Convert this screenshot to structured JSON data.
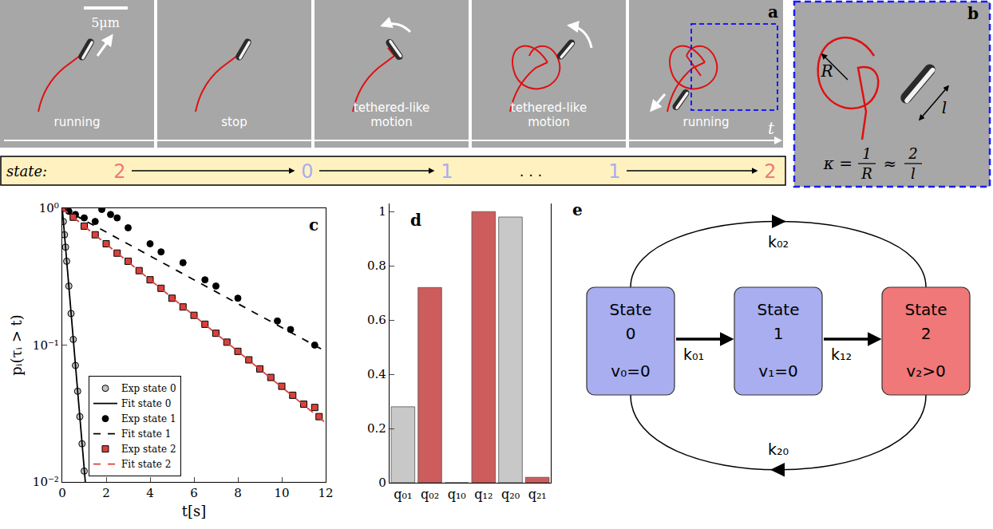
{
  "panel_a": {
    "label": "a",
    "scale_bar": "5μm",
    "time_axis": "t",
    "frames": [
      "running",
      "stop",
      "tethered-like motion",
      "tethered-like motion",
      "running"
    ],
    "state_bar": {
      "title": "state:",
      "states": [
        {
          "text": "2",
          "color": "#f07878"
        },
        {
          "text": "0",
          "color": "#a8aef0"
        },
        {
          "text": "1",
          "color": "#a8aef0"
        },
        {
          "text": "1",
          "color": "#a8aef0"
        },
        {
          "text": "2",
          "color": "#f07878"
        }
      ],
      "ellipsis": ". . ."
    }
  },
  "panel_b": {
    "label": "b",
    "radius_label": "R",
    "length_label": "l",
    "formula": {
      "lhs": "κ =",
      "frac1": [
        "1",
        "R"
      ],
      "approx": "≈",
      "frac2": [
        "2",
        "l"
      ]
    }
  },
  "chart_data": [
    {
      "type": "scatter",
      "annotations": [
        "c"
      ],
      "x_label": "t[s]",
      "y_label": "pᵢ(τᵢ > t)",
      "log": "y",
      "grid": false,
      "xlim": [
        0,
        12
      ],
      "ylim": [
        0.01,
        1
      ],
      "xticks": [
        0,
        2,
        4,
        6,
        8,
        10,
        12
      ],
      "yticks": [
        {
          "value": 0.01,
          "label": "10⁻²"
        },
        {
          "value": 0.1,
          "label": "10⁻¹"
        },
        {
          "value": 1,
          "label": "10⁰"
        }
      ],
      "legend": "lower left",
      "series": [
        {
          "name": "Exp state 0",
          "type": "scatter",
          "marker": "circle",
          "color": "#c4c4c4",
          "x": [
            0,
            0.05,
            0.1,
            0.15,
            0.2,
            0.3,
            0.4,
            0.5,
            0.6,
            0.7,
            0.8,
            0.9,
            1.0
          ],
          "values": [
            1,
            0.8,
            0.64,
            0.52,
            0.41,
            0.27,
            0.17,
            0.11,
            0.071,
            0.046,
            0.03,
            0.019,
            0.012
          ]
        },
        {
          "name": "Fit state 0",
          "type": "line",
          "line_style": "solid",
          "color": "#000000",
          "x": [
            0,
            1.05
          ],
          "values": [
            1,
            0.01
          ]
        },
        {
          "name": "Exp state 1",
          "type": "scatter",
          "marker": "circle",
          "color": "#000000",
          "x": [
            0,
            0.3,
            0.6,
            1.0,
            1.5,
            1.8,
            2.2,
            2.5,
            3.0,
            4.0,
            4.5,
            5.5,
            6.5,
            7.0,
            8.0,
            9.8,
            10.4,
            11.5
          ],
          "values": [
            1,
            0.95,
            0.9,
            0.85,
            0.8,
            0.98,
            0.9,
            0.85,
            0.72,
            0.55,
            0.48,
            0.4,
            0.3,
            0.27,
            0.22,
            0.15,
            0.13,
            0.1
          ]
        },
        {
          "name": "Fit state 1",
          "type": "line",
          "line_style": "dashed",
          "color": "#000000",
          "x": [
            0,
            12
          ],
          "values": [
            1,
            0.09
          ]
        },
        {
          "name": "Exp state 2",
          "type": "scatter",
          "marker": "square",
          "color": "#d9423c",
          "x": [
            0,
            0.5,
            1,
            1.5,
            2,
            2.5,
            3,
            3.5,
            4,
            4.5,
            5,
            5.5,
            6,
            6.5,
            7,
            7.5,
            8,
            8.5,
            9,
            9.5,
            10,
            10.5,
            11,
            11.5,
            11.7
          ],
          "values": [
            1,
            0.86,
            0.74,
            0.64,
            0.55,
            0.47,
            0.41,
            0.35,
            0.3,
            0.26,
            0.22,
            0.19,
            0.165,
            0.142,
            0.122,
            0.105,
            0.09,
            0.078,
            0.067,
            0.058,
            0.05,
            0.043,
            0.037,
            0.035,
            0.03
          ]
        },
        {
          "name": "Fit state 2",
          "type": "line",
          "line_style": "dashed",
          "color": "#d9423c",
          "x": [
            0,
            12
          ],
          "values": [
            1,
            0.027
          ]
        }
      ]
    },
    {
      "type": "bar",
      "annotations": [
        "d"
      ],
      "grid": false,
      "categories": [
        "q₀₁",
        "q₀₂",
        "q₁₀",
        "q₁₂",
        "q₂₀",
        "q₂₁"
      ],
      "values": [
        0.28,
        0.72,
        0,
        1.0,
        0.98,
        0.02
      ],
      "colors": [
        "#c8c8c8",
        "#cd5c5c",
        "#c8c8c8",
        "#cd5c5c",
        "#c8c8c8",
        "#cd5c5c"
      ],
      "ylim": [
        0,
        1.03
      ],
      "yticks": [
        0,
        0.2,
        0.4,
        0.6,
        0.8,
        1
      ]
    }
  ],
  "panel_e": {
    "label": "e",
    "nodes": [
      {
        "title": "State",
        "id": "0",
        "velocity": "v₀=0",
        "color": "#a8aef0"
      },
      {
        "title": "State",
        "id": "1",
        "velocity": "v₁=0",
        "color": "#a8aef0"
      },
      {
        "title": "State",
        "id": "2",
        "velocity": "v₂>0",
        "color": "#f07878"
      }
    ],
    "edges": [
      {
        "from": 0,
        "to": 1,
        "label": "k₀₁"
      },
      {
        "from": 1,
        "to": 2,
        "label": "k₁₂"
      },
      {
        "from": 0,
        "to": 2,
        "label": "k₀₂"
      },
      {
        "from": 2,
        "to": 0,
        "label": "k₂₀"
      }
    ]
  }
}
